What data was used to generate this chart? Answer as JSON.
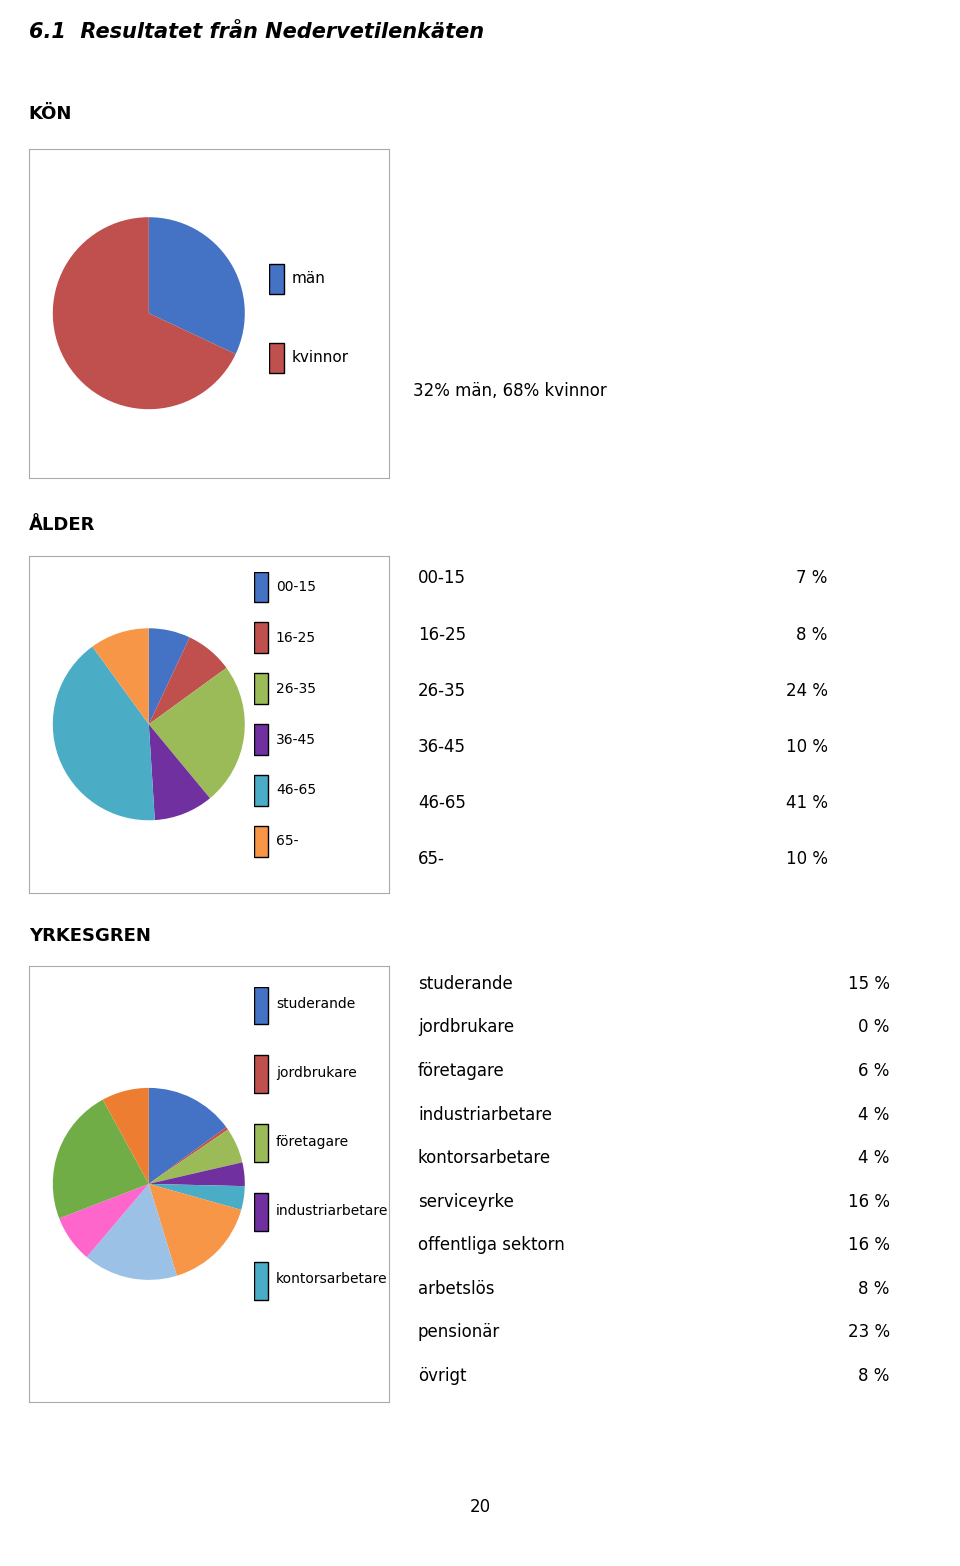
{
  "title": "6.1  Resultatet från Nedervetilenkäten",
  "kon_label": "KÖN",
  "alder_label": "ÅLDER",
  "yrke_label": "YRKESGREN",
  "kon_values": [
    32,
    68
  ],
  "kon_labels": [
    "män",
    "kvinnor"
  ],
  "kon_colors": [
    "#4472C4",
    "#C0504D"
  ],
  "kon_text": "32% män, 68% kvinnor",
  "alder_values": [
    7,
    8,
    24,
    10,
    41,
    10
  ],
  "alder_labels": [
    "00-15",
    "16-25",
    "26-35",
    "36-45",
    "46-65",
    "65-"
  ],
  "alder_colors": [
    "#4472C4",
    "#C0504D",
    "#9BBB59",
    "#7030A0",
    "#4BACC6",
    "#F79646"
  ],
  "alder_stats": [
    [
      "00-15",
      "7 %"
    ],
    [
      "16-25",
      "8 %"
    ],
    [
      "26-35",
      "24 %"
    ],
    [
      "36-45",
      "10 %"
    ],
    [
      "46-65",
      "41 %"
    ],
    [
      "65-",
      "10 %"
    ]
  ],
  "yrke_values": [
    15,
    0.5,
    6,
    4,
    4,
    16,
    16,
    8,
    23,
    8
  ],
  "yrke_labels": [
    "studerande",
    "jordbrukare",
    "företagare",
    "industriarbetare",
    "kontorsarbetare",
    "serviceyrke",
    "offentliga sektorn",
    "arbetslös",
    "pensionär",
    "övrigt"
  ],
  "yrke_colors": [
    "#4472C4",
    "#C0504D",
    "#9BBB59",
    "#7030A0",
    "#4BACC6",
    "#F79646",
    "#9BC2E6",
    "#FF66CC",
    "#70AD47",
    "#ED7D31"
  ],
  "yrke_legend_labels": [
    "studerande",
    "jordbrukare",
    "företagare",
    "industriarbetare",
    "kontorsarbetare"
  ],
  "yrke_legend_colors": [
    "#4472C4",
    "#C0504D",
    "#9BBB59",
    "#7030A0",
    "#4BACC6"
  ],
  "yrke_stats": [
    [
      "studerande",
      "15 %"
    ],
    [
      "jordbrukare",
      "0 %"
    ],
    [
      "företagare",
      "6 %"
    ],
    [
      "industriarbetare",
      "4 %"
    ],
    [
      "kontorsarbetare",
      "4 %"
    ],
    [
      "serviceyrke",
      "16 %"
    ],
    [
      "offentliga sektorn",
      "16 %"
    ],
    [
      "arbetslös",
      "8 %"
    ],
    [
      "pensionär",
      "23 %"
    ],
    [
      "övrigt",
      "8 %"
    ]
  ],
  "page_number": "20",
  "background_color": "#FFFFFF"
}
